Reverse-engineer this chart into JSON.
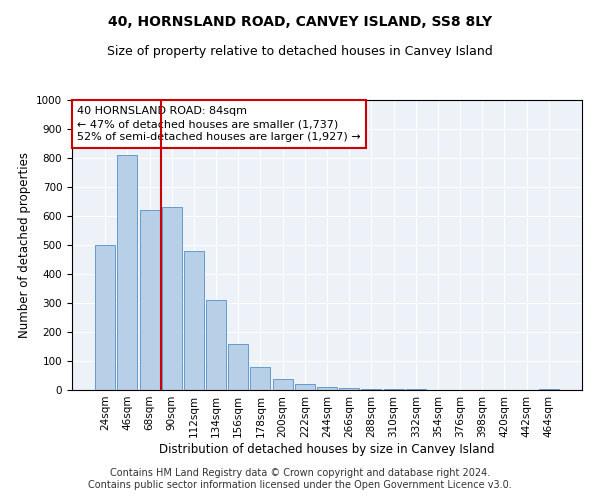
{
  "title1": "40, HORNSLAND ROAD, CANVEY ISLAND, SS8 8LY",
  "title2": "Size of property relative to detached houses in Canvey Island",
  "xlabel": "Distribution of detached houses by size in Canvey Island",
  "ylabel": "Number of detached properties",
  "categories": [
    "24sqm",
    "46sqm",
    "68sqm",
    "90sqm",
    "112sqm",
    "134sqm",
    "156sqm",
    "178sqm",
    "200sqm",
    "222sqm",
    "244sqm",
    "266sqm",
    "288sqm",
    "310sqm",
    "332sqm",
    "354sqm",
    "376sqm",
    "398sqm",
    "420sqm",
    "442sqm",
    "464sqm"
  ],
  "values": [
    500,
    810,
    620,
    630,
    480,
    310,
    160,
    80,
    38,
    20,
    12,
    8,
    5,
    3,
    2,
    1,
    1,
    0,
    0,
    0,
    2
  ],
  "bar_color": "#b8cfe8",
  "bar_edge_color": "#6699cc",
  "vline_x": 2.5,
  "vline_color": "#cc0000",
  "annotation_text": "40 HORNSLAND ROAD: 84sqm\n← 47% of detached houses are smaller (1,737)\n52% of semi-detached houses are larger (1,927) →",
  "annotation_box_color": "white",
  "annotation_box_edge_color": "#cc0000",
  "ylim": [
    0,
    1000
  ],
  "yticks": [
    0,
    100,
    200,
    300,
    400,
    500,
    600,
    700,
    800,
    900,
    1000
  ],
  "footer1": "Contains HM Land Registry data © Crown copyright and database right 2024.",
  "footer2": "Contains public sector information licensed under the Open Government Licence v3.0.",
  "bg_color": "#edf2f9",
  "grid_color": "white",
  "title1_fontsize": 10,
  "title2_fontsize": 9,
  "xlabel_fontsize": 8.5,
  "ylabel_fontsize": 8.5,
  "tick_fontsize": 7.5,
  "annotation_fontsize": 8,
  "footer_fontsize": 7
}
